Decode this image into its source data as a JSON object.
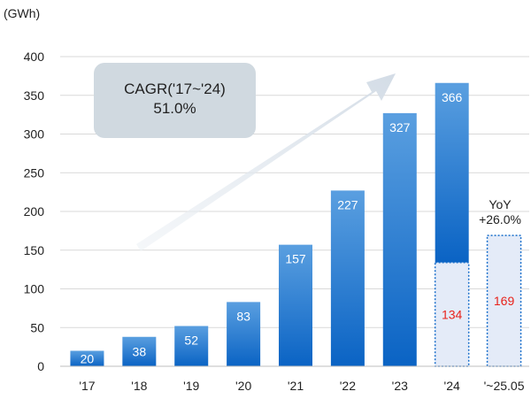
{
  "chart_data": {
    "type": "bar",
    "unit_label": "(GWh)",
    "categories": [
      "'17",
      "'18",
      "'19",
      "'20",
      "'21",
      "'22",
      "'23",
      "'24",
      "'~25.05"
    ],
    "values": [
      20,
      38,
      52,
      83,
      157,
      227,
      327,
      366,
      169
    ],
    "value_labels": [
      "20",
      "38",
      "52",
      "83",
      "157",
      "227",
      "327",
      "366",
      "169"
    ],
    "partial": {
      "category": "'24",
      "value": 134,
      "label": "134"
    },
    "ylim": [
      0,
      400
    ],
    "yticks": [
      0,
      50,
      100,
      150,
      200,
      250,
      300,
      350,
      400
    ],
    "grid": true,
    "annotation": {
      "line1": "CAGR('17~'24)",
      "line2": "51.0%"
    },
    "yoy_line1": "YoY",
    "yoy_line2": "+26.0%",
    "colors": {
      "bar_top": "#5a9fe0",
      "bar_bottom": "#0a63c4",
      "partial_fill": "#e4ebf8",
      "partial_border": "#1a6fcb",
      "partial_label": "#e8221b",
      "bar_label": "#ffffff",
      "grid": "#d9d9d9",
      "arrow": "#d3dce6",
      "annotation_box": "#d0d9e0",
      "text": "#222222"
    }
  }
}
